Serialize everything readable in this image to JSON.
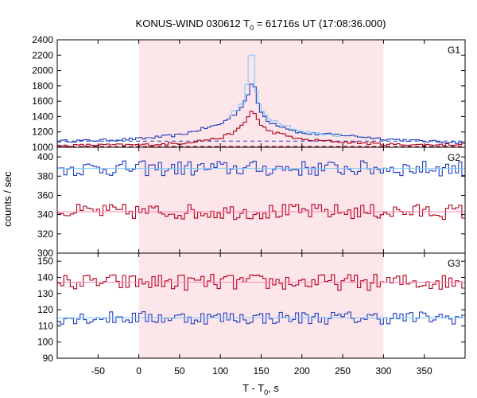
{
  "title_parts": {
    "prefix": "KONUS-WIND 030612 T",
    "sub": "0",
    "suffix": " = 61716s UT (17:08:36.000)"
  },
  "xlabel_parts": {
    "prefix": "T - T",
    "sub": "0",
    "suffix": ", s"
  },
  "ylabel": "counts / sec",
  "colors": {
    "blue": "#1f3fbf",
    "red": "#b3001b",
    "lightblue": "#7ec8ff",
    "pink": "#ff88bb",
    "shade": "#fde6ea"
  },
  "chart_data": {
    "type": "line",
    "x_range": [
      -100,
      400
    ],
    "x_ticks": [
      -50,
      0,
      50,
      100,
      150,
      200,
      250,
      300,
      350
    ],
    "shaded_interval": [
      0,
      300
    ],
    "bin_width": 4,
    "panels": [
      {
        "label": "G1",
        "ylim": [
          1000,
          2400
        ],
        "yticks": [
          1000,
          1200,
          1400,
          1600,
          1800,
          2000,
          2200,
          2400
        ],
        "series": [
          {
            "color": "blue",
            "key_points": [
              [
                -100,
                1080
              ],
              [
                -50,
                1090
              ],
              [
                0,
                1110
              ],
              [
                50,
                1160
              ],
              [
                100,
                1300
              ],
              [
                120,
                1450
              ],
              [
                130,
                1600
              ],
              [
                136,
                1750
              ],
              [
                140,
                1880
              ],
              [
                144,
                1650
              ],
              [
                150,
                1450
              ],
              [
                160,
                1330
              ],
              [
                200,
                1180
              ],
              [
                250,
                1160
              ],
              [
                300,
                1110
              ],
              [
                350,
                1080
              ],
              [
                400,
                1060
              ]
            ],
            "background": 1080,
            "background_style": "dashed"
          },
          {
            "color": "red",
            "key_points": [
              [
                -100,
                1020
              ],
              [
                -50,
                1030
              ],
              [
                0,
                1030
              ],
              [
                50,
                1050
              ],
              [
                100,
                1120
              ],
              [
                120,
                1210
              ],
              [
                130,
                1330
              ],
              [
                136,
                1430
              ],
              [
                140,
                1500
              ],
              [
                144,
                1400
              ],
              [
                150,
                1280
              ],
              [
                160,
                1210
              ],
              [
                200,
                1100
              ],
              [
                250,
                1070
              ],
              [
                300,
                1040
              ],
              [
                350,
                1030
              ],
              [
                400,
                1040
              ]
            ],
            "background": 1010,
            "background_style": "dashed"
          },
          {
            "color": "lightblue",
            "key_points": [
              [
                110,
                1400
              ],
              [
                130,
                1600
              ],
              [
                136,
                2200
              ],
              [
                140,
                2200
              ],
              [
                144,
                1700
              ],
              [
                150,
                1480
              ],
              [
                160,
                1380
              ],
              [
                200,
                1200
              ],
              [
                250,
                1150
              ]
            ],
            "background": null,
            "background_style": "none"
          }
        ]
      },
      {
        "label": "G2",
        "ylim": [
          300,
          410
        ],
        "yticks": [
          300,
          320,
          340,
          360,
          380,
          400
        ],
        "series": [
          {
            "color": "blue",
            "mean": 388,
            "spread": 8
          },
          {
            "color": "red",
            "mean": 343,
            "spread": 8
          }
        ]
      },
      {
        "label": "G3",
        "ylim": [
          90,
          155
        ],
        "yticks": [
          90,
          100,
          110,
          120,
          130,
          140,
          150
        ],
        "series": [
          {
            "color": "red",
            "mean": 137,
            "spread": 5
          },
          {
            "color": "blue",
            "mean": 115,
            "spread": 4
          }
        ]
      }
    ]
  }
}
